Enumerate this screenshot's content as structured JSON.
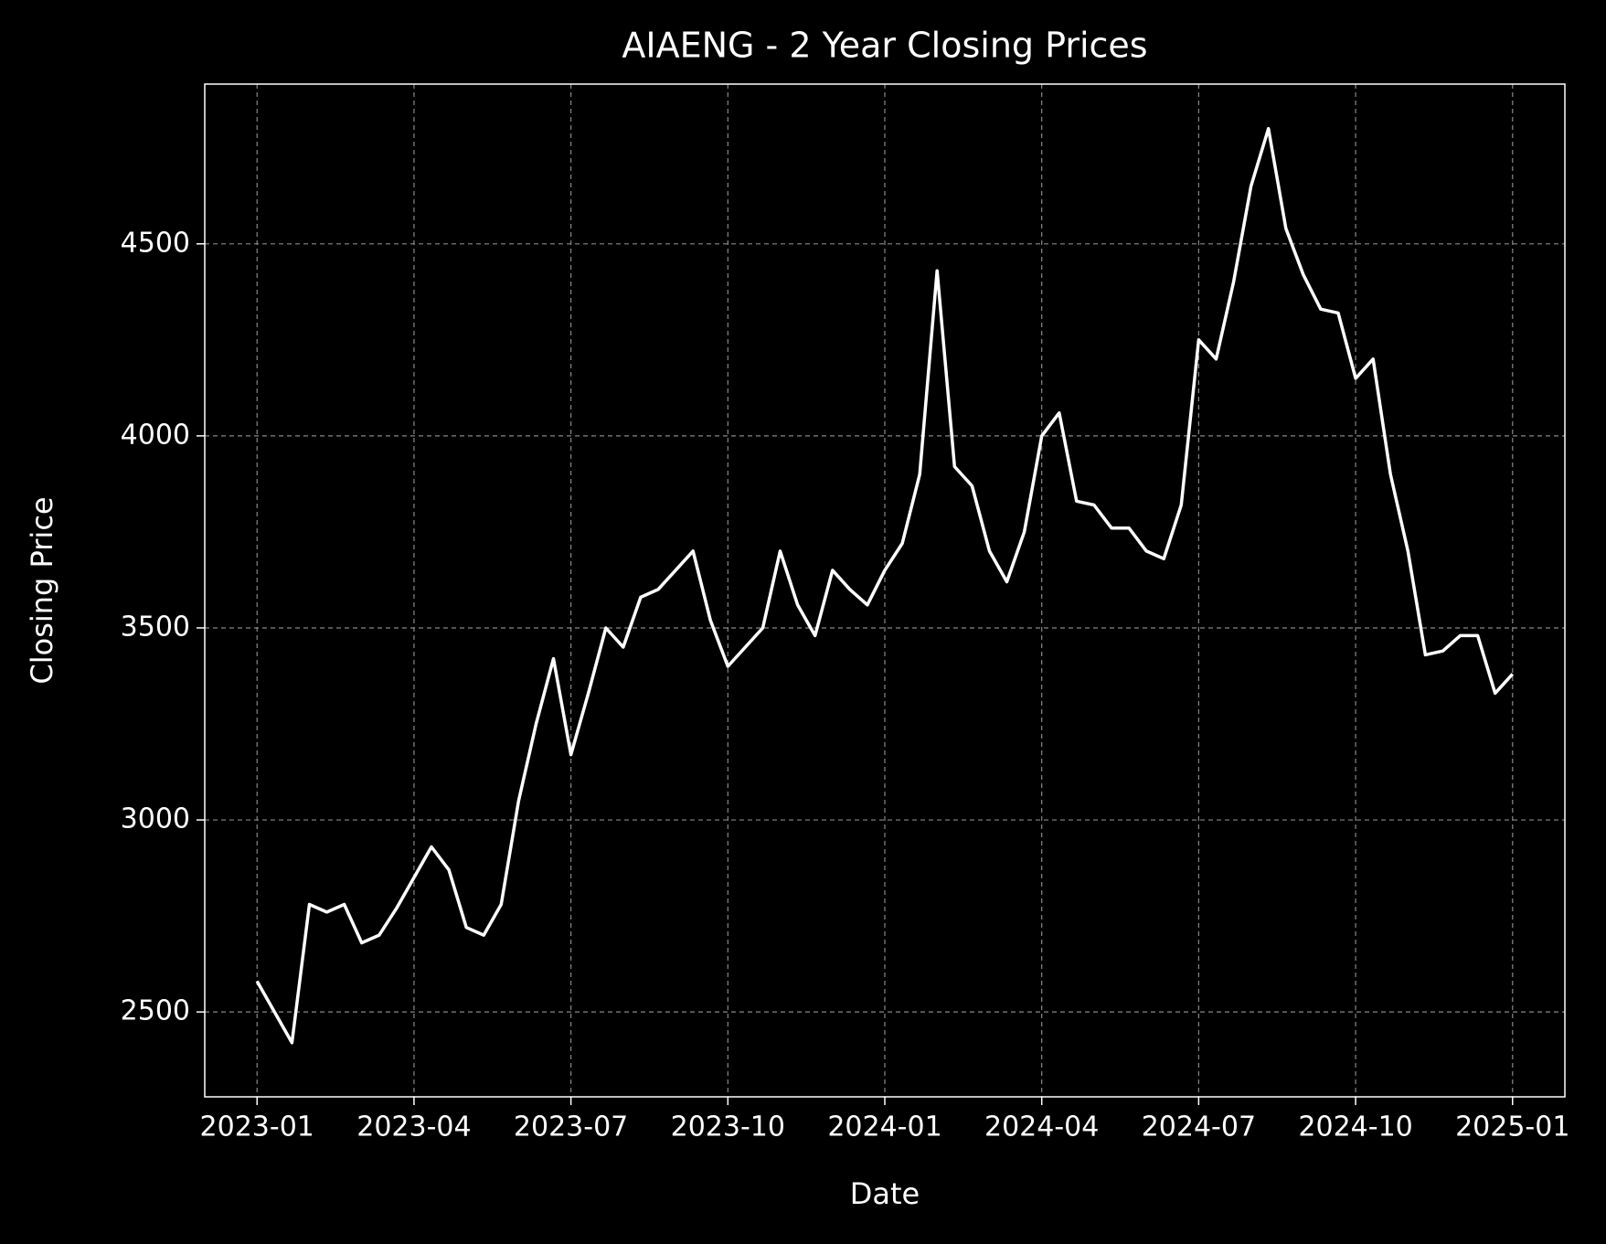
{
  "chart_data": {
    "type": "line",
    "title": "AIAENG - 2 Year Closing Prices",
    "x_label": "Date",
    "y_label": "Closing Price",
    "x": [
      "2023-01",
      "2023-01",
      "2023-01",
      "2023-02",
      "2023-02",
      "2023-02",
      "2023-03",
      "2023-03",
      "2023-03",
      "2023-04",
      "2023-04",
      "2023-04",
      "2023-05",
      "2023-05",
      "2023-05",
      "2023-06",
      "2023-06",
      "2023-06",
      "2023-07",
      "2023-07",
      "2023-07",
      "2023-08",
      "2023-08",
      "2023-08",
      "2023-09",
      "2023-09",
      "2023-09",
      "2023-10",
      "2023-10",
      "2023-10",
      "2023-11",
      "2023-11",
      "2023-11",
      "2023-12",
      "2023-12",
      "2023-12",
      "2024-01",
      "2024-01",
      "2024-01",
      "2024-02",
      "2024-02",
      "2024-02",
      "2024-03",
      "2024-03",
      "2024-03",
      "2024-04",
      "2024-04",
      "2024-04",
      "2024-05",
      "2024-05",
      "2024-05",
      "2024-06",
      "2024-06",
      "2024-06",
      "2024-07",
      "2024-07",
      "2024-07",
      "2024-08",
      "2024-08",
      "2024-08",
      "2024-09",
      "2024-09",
      "2024-09",
      "2024-10",
      "2024-10",
      "2024-10",
      "2024-11",
      "2024-11",
      "2024-11",
      "2024-12",
      "2024-12",
      "2024-12",
      "2025-01"
    ],
    "values": [
      2580,
      2500,
      2420,
      2780,
      2760,
      2780,
      2680,
      2700,
      2770,
      2850,
      2930,
      2870,
      2720,
      2700,
      2780,
      3050,
      3250,
      3420,
      3170,
      3330,
      3500,
      3450,
      3580,
      3600,
      3650,
      3700,
      3520,
      3400,
      3450,
      3500,
      3700,
      3560,
      3480,
      3650,
      3600,
      3560,
      3650,
      3720,
      3900,
      4430,
      3920,
      3870,
      3700,
      3620,
      3750,
      4000,
      4060,
      3830,
      3820,
      3760,
      3760,
      3700,
      3680,
      3820,
      4250,
      4200,
      4400,
      4650,
      4800,
      4540,
      4420,
      4330,
      4320,
      4150,
      4200,
      3900,
      3700,
      3430,
      3440,
      3480,
      3480,
      3330,
      3380
    ],
    "color": "#ffffff",
    "xlim": [
      "2022-12",
      "2025-02"
    ],
    "xticks": [
      "2023-01",
      "2023-04",
      "2023-07",
      "2023-10",
      "2024-01",
      "2024-04",
      "2024-07",
      "2024-10",
      "2025-01"
    ],
    "ylim": [
      2279,
      4916
    ],
    "yticks": [
      2500,
      3000,
      3500,
      4000,
      4500
    ],
    "grid": true
  }
}
